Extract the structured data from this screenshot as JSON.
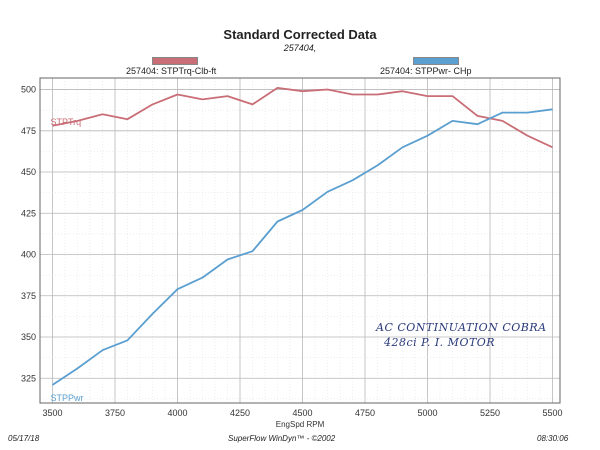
{
  "chart_data": {
    "type": "line",
    "title": "Standard Corrected Data",
    "subtitle": "257404,",
    "xlabel": "EngSpd  RPM",
    "ylabel": "",
    "xlim": [
      3450,
      5530
    ],
    "ylim": [
      310,
      507
    ],
    "x_ticks": [
      3500,
      3750,
      4000,
      4250,
      4500,
      4750,
      5000,
      5250,
      5500
    ],
    "y_ticks": [
      325,
      350,
      375,
      400,
      425,
      450,
      475,
      500
    ],
    "x_tick_labels": [
      "3500",
      "3750",
      "4000",
      "4250",
      "4500",
      "4750",
      "5000",
      "5250",
      "5500"
    ],
    "y_tick_labels": [
      "325",
      "350",
      "375",
      "400",
      "425",
      "450",
      "475",
      "500"
    ],
    "grid": true,
    "legend_placement": "top",
    "x": [
      3500,
      3600,
      3700,
      3800,
      3900,
      4000,
      4100,
      4200,
      4300,
      4400,
      4500,
      4600,
      4700,
      4800,
      4900,
      5000,
      5100,
      5200,
      5300,
      5400,
      5500
    ],
    "series": [
      {
        "name": "257404: STPTrq-Clb-ft",
        "curve_label": "STPTrq",
        "color": "#c96d76",
        "values": [
          478,
          481,
          485,
          482,
          491,
          497,
          494,
          496,
          491,
          501,
          499,
          500,
          497,
          497,
          499,
          496,
          496,
          484,
          481,
          472,
          465
        ]
      },
      {
        "name": "257404: STPPwr- CHp",
        "curve_label": "STPPwr",
        "color": "#5b9fd0",
        "values": [
          321,
          331,
          342,
          348,
          364,
          379,
          386,
          397,
          402,
          420,
          427,
          438,
          445,
          454,
          465,
          472,
          481,
          479,
          486,
          486,
          488
        ]
      }
    ]
  },
  "footer": {
    "date": "05/17/18",
    "software": "SuperFlow WinDyn™ - ©2002",
    "time": "08:30:06"
  },
  "annotation": {
    "line1": "AC CONTINUATION COBRA",
    "line2": "428ci P. I. MOTOR"
  }
}
